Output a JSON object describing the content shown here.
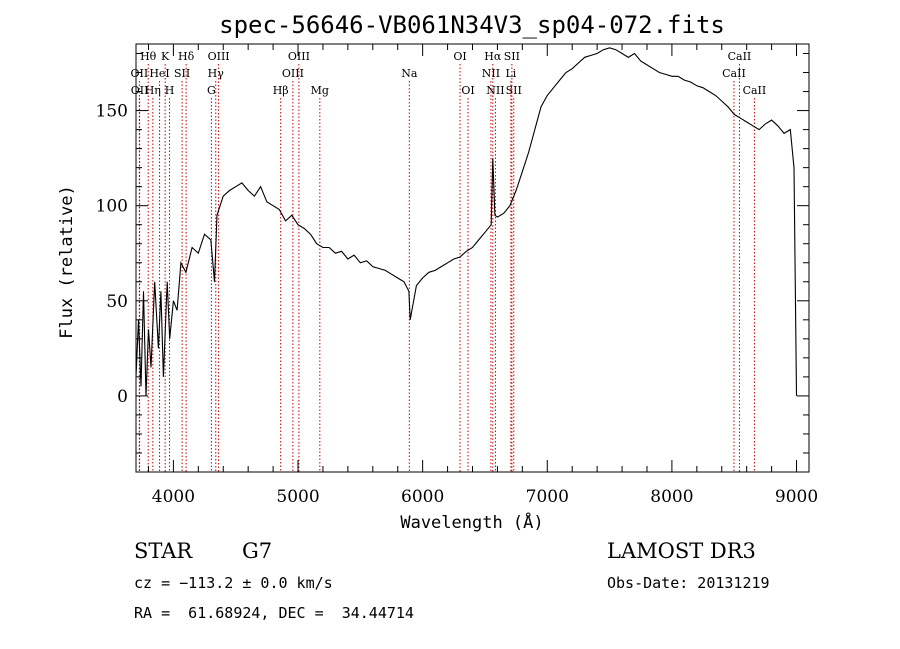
{
  "chart_data": {
    "type": "line",
    "title": "spec-56646-VB061N34V3_sp04-072.fits",
    "xlabel": "Wavelength (Å)",
    "ylabel": "Flux (relative)",
    "xlim": [
      3700,
      9100
    ],
    "ylim": [
      -40,
      185
    ],
    "xticks": [
      4000,
      5000,
      6000,
      7000,
      8000,
      9000
    ],
    "xtick_labels": [
      "4000",
      "5000",
      "6000",
      "7000",
      "8000",
      "9000"
    ],
    "yticks": [
      0,
      50,
      100,
      150
    ],
    "ytick_labels": [
      "0",
      "50",
      "100",
      "150"
    ],
    "grid": false,
    "legend": "none",
    "series": [
      {
        "x": [
          3700,
          3720,
          3740,
          3760,
          3780,
          3800,
          3820,
          3850,
          3880,
          3900,
          3920,
          3950,
          3970,
          4000,
          4030,
          4060,
          4100,
          4150,
          4200,
          4250,
          4300,
          4330,
          4350,
          4400,
          4450,
          4500,
          4550,
          4600,
          4650,
          4700,
          4750,
          4800,
          4850,
          4900,
          4950,
          5000,
          5050,
          5100,
          5150,
          5200,
          5250,
          5300,
          5350,
          5400,
          5450,
          5500,
          5550,
          5600,
          5650,
          5700,
          5750,
          5800,
          5850,
          5890,
          5900,
          5950,
          6000,
          6050,
          6100,
          6150,
          6200,
          6250,
          6300,
          6350,
          6400,
          6450,
          6500,
          6550,
          6563,
          6580,
          6600,
          6650,
          6700,
          6750,
          6800,
          6850,
          6900,
          6950,
          7000,
          7050,
          7100,
          7150,
          7200,
          7250,
          7300,
          7350,
          7400,
          7450,
          7500,
          7550,
          7600,
          7650,
          7700,
          7750,
          7800,
          7850,
          7900,
          7950,
          8000,
          8050,
          8100,
          8150,
          8200,
          8250,
          8300,
          8350,
          8400,
          8450,
          8500,
          8550,
          8600,
          8650,
          8700,
          8750,
          8800,
          8850,
          8900,
          8950,
          8980,
          9000
        ],
        "y": [
          10,
          40,
          5,
          55,
          0,
          35,
          15,
          60,
          25,
          55,
          10,
          60,
          30,
          50,
          45,
          70,
          65,
          78,
          75,
          85,
          82,
          60,
          95,
          105,
          108,
          110,
          112,
          108,
          105,
          110,
          102,
          100,
          98,
          92,
          95,
          90,
          88,
          85,
          80,
          78,
          78,
          75,
          76,
          72,
          74,
          70,
          71,
          68,
          67,
          66,
          64,
          62,
          60,
          55,
          40,
          58,
          62,
          65,
          66,
          68,
          70,
          72,
          73,
          76,
          78,
          82,
          86,
          90,
          125,
          95,
          94,
          96,
          100,
          108,
          118,
          128,
          140,
          152,
          158,
          162,
          166,
          170,
          172,
          175,
          178,
          179,
          180,
          182,
          183,
          182,
          180,
          178,
          180,
          176,
          174,
          172,
          170,
          169,
          168,
          168,
          166,
          165,
          163,
          162,
          160,
          158,
          155,
          152,
          148,
          146,
          144,
          142,
          140,
          143,
          145,
          142,
          138,
          140,
          120,
          0
        ]
      }
    ],
    "lines": [
      {
        "name": "Hθ",
        "x": 3798,
        "row": 0
      },
      {
        "name": "OII",
        "x": 3727,
        "row": 1
      },
      {
        "name": "OII",
        "x": 3729,
        "row": 2
      },
      {
        "name": "Hη",
        "x": 3835,
        "row": 2
      },
      {
        "name": "K",
        "x": 3934,
        "row": 0
      },
      {
        "name": "HeI",
        "x": 3889,
        "row": 1
      },
      {
        "name": "SII",
        "x": 4070,
        "row": 1
      },
      {
        "name": "H",
        "x": 3969,
        "row": 2
      },
      {
        "name": "Hδ",
        "x": 4102,
        "row": 0
      },
      {
        "name": "OIII",
        "x": 4363,
        "row": 0
      },
      {
        "name": "Hγ",
        "x": 4340,
        "row": 1
      },
      {
        "name": "G",
        "x": 4305,
        "row": 2
      },
      {
        "name": "OIII",
        "x": 5007,
        "row": 0
      },
      {
        "name": "OIII",
        "x": 4959,
        "row": 1
      },
      {
        "name": "Hβ",
        "x": 4861,
        "row": 2
      },
      {
        "name": "Mg",
        "x": 5175,
        "row": 2
      },
      {
        "name": "Na",
        "x": 5893,
        "row": 1
      },
      {
        "name": "OI",
        "x": 6300,
        "row": 0
      },
      {
        "name": "OI",
        "x": 6364,
        "row": 2
      },
      {
        "name": "Hα",
        "x": 6563,
        "row": 0
      },
      {
        "name": "SII",
        "x": 6716,
        "row": 0
      },
      {
        "name": "NII",
        "x": 6548,
        "row": 1
      },
      {
        "name": "Li",
        "x": 6708,
        "row": 1
      },
      {
        "name": "NII",
        "x": 6584,
        "row": 2
      },
      {
        "name": "SII",
        "x": 6731,
        "row": 2
      },
      {
        "name": "CaII",
        "x": 8542,
        "row": 0
      },
      {
        "name": "CaII",
        "x": 8498,
        "row": 1
      },
      {
        "name": "CaII",
        "x": 8662,
        "row": 2
      }
    ]
  },
  "info": {
    "class": "STAR",
    "subclass": "G7",
    "survey": "LAMOST DR3",
    "cz": "cz = −113.2 ± 0.0 km/s",
    "obs_date": "Obs-Date: 20131219",
    "coords": "RA =  61.68924, DEC =  34.44714"
  },
  "colors": {
    "line_marker": "#cc0000",
    "spectrum": "#000000"
  }
}
